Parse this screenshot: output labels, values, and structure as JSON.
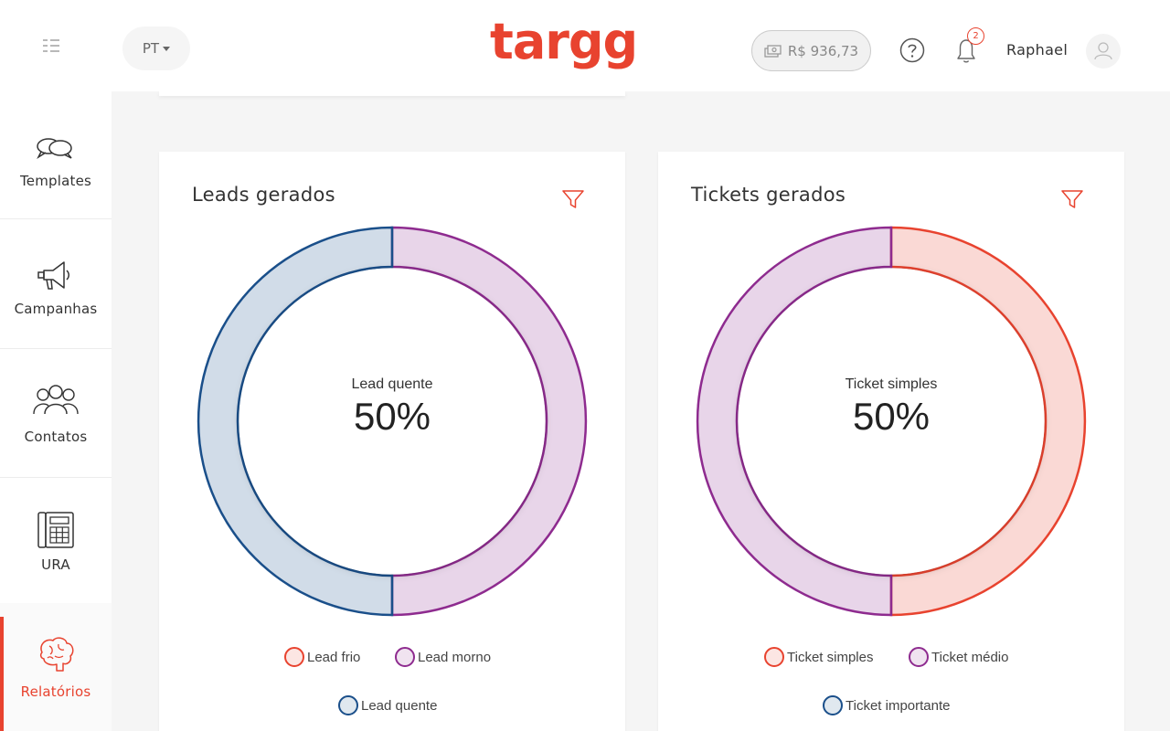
{
  "header": {
    "language": "PT",
    "logo": "targg",
    "balance": "R$ 936,73",
    "notifications_count": "2",
    "username": "Raphael"
  },
  "sidebar": {
    "items": [
      {
        "label": "Templates",
        "icon": "chat-bubbles-icon",
        "active": false
      },
      {
        "label": "Campanhas",
        "icon": "megaphone-icon",
        "active": false
      },
      {
        "label": "Contatos",
        "icon": "people-group-icon",
        "active": false
      },
      {
        "label": "URA",
        "icon": "phone-keypad-icon",
        "active": false
      },
      {
        "label": "Relatórios",
        "icon": "brain-icon",
        "active": true
      }
    ]
  },
  "colors": {
    "accent": "#e8432f",
    "lead_frio": "#e8432f",
    "lead_morno": "#8e2b8f",
    "lead_quente": "#1a4f8a"
  },
  "cards": [
    {
      "title": "Leads gerados",
      "center_label": "Lead quente",
      "center_value": "50%",
      "legend": [
        {
          "label": "Lead frio",
          "color": "#e8432f"
        },
        {
          "label": "Lead morno",
          "color": "#8e2b8f"
        },
        {
          "label": "Lead quente",
          "color": "#1a4f8a"
        }
      ]
    },
    {
      "title": "Tickets gerados",
      "center_label": "Ticket simples",
      "center_value": "50%",
      "legend": [
        {
          "label": "Ticket simples",
          "color": "#e8432f"
        },
        {
          "label": "Ticket médio",
          "color": "#8e2b8f"
        },
        {
          "label": "Ticket importante",
          "color": "#1a4f8a"
        }
      ]
    }
  ],
  "chart_data": [
    {
      "type": "pie",
      "title": "Leads gerados",
      "categories": [
        "Lead frio",
        "Lead morno",
        "Lead quente"
      ],
      "values": [
        0,
        50,
        50
      ],
      "colors": [
        "#e8432f",
        "#8e2b8f",
        "#1a4f8a"
      ],
      "legend": "bottom"
    },
    {
      "type": "pie",
      "title": "Tickets gerados",
      "categories": [
        "Ticket simples",
        "Ticket médio",
        "Ticket importante"
      ],
      "values": [
        50,
        50,
        0
      ],
      "colors": [
        "#e8432f",
        "#8e2b8f",
        "#1a4f8a"
      ],
      "legend": "bottom"
    }
  ]
}
